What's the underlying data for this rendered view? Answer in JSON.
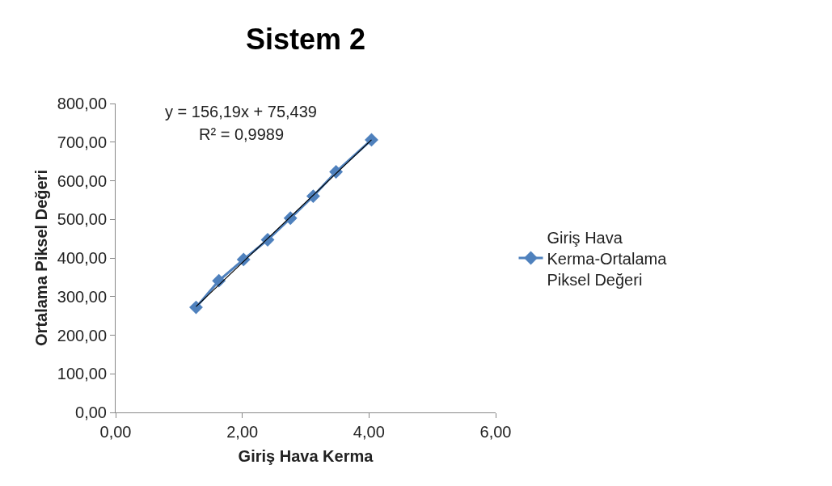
{
  "chart_data": {
    "type": "line",
    "title": "Sistem 2",
    "xlabel": "Giriş Hava Kerma",
    "ylabel": "Ortalama Piksel Değeri",
    "series": [
      {
        "name": "Giriş Hava Kerma-Ortalama Piksel Değeri",
        "color": "#4f81bd",
        "marker": "diamond",
        "x": [
          1.27,
          1.63,
          2.02,
          2.4,
          2.76,
          3.12,
          3.48,
          4.04
        ],
        "values": [
          272,
          341,
          396,
          447,
          503,
          560,
          623,
          706
        ]
      },
      {
        "type": "line",
        "color": "#000000",
        "marker": "none",
        "x": [
          1.27,
          4.04
        ],
        "values": [
          274,
          706
        ]
      }
    ],
    "xlim": [
      0,
      6
    ],
    "xticks": [
      {
        "value": 0,
        "label": "0,00"
      },
      {
        "value": 2,
        "label": "2,00"
      },
      {
        "value": 4,
        "label": "4,00"
      },
      {
        "value": 6,
        "label": "6,00"
      }
    ],
    "ylim": [
      0,
      800
    ],
    "yticks": [
      {
        "value": 0,
        "label": "0,00"
      },
      {
        "value": 100,
        "label": "100,00"
      },
      {
        "value": 200,
        "label": "200,00"
      },
      {
        "value": 300,
        "label": "300,00"
      },
      {
        "value": 400,
        "label": "400,00"
      },
      {
        "value": 500,
        "label": "500,00"
      },
      {
        "value": 600,
        "label": "600,00"
      },
      {
        "value": 700,
        "label": "700,00"
      },
      {
        "value": 800,
        "label": "800,00"
      }
    ],
    "annotations": [
      "y = 156,19x + 75,439",
      "R² = 0,9989"
    ],
    "grid": false,
    "legend": "right",
    "line_style": "solid"
  }
}
